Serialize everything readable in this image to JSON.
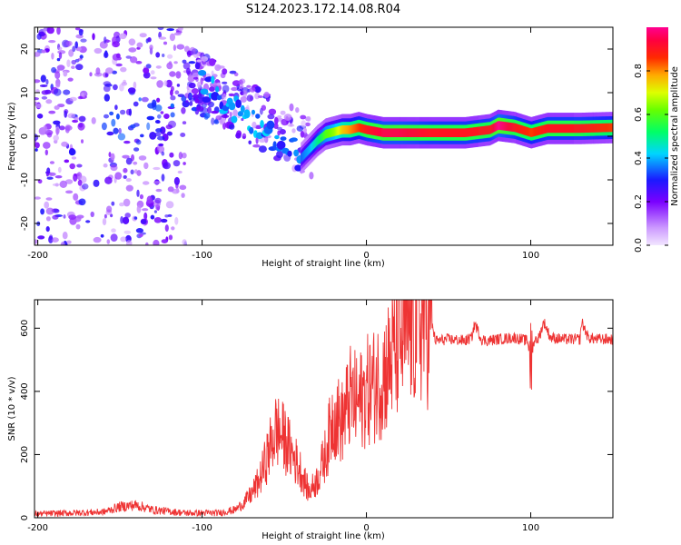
{
  "title": "S124.2023.172.14.08.R04",
  "colors": {
    "snr_line": "#ee3333",
    "axis": "#000000"
  },
  "chart_data": [
    {
      "type": "heatmap",
      "xlabel": "Height of straight line (km)",
      "ylabel": "Frequency (Hz)",
      "xlim": [
        -202,
        150
      ],
      "ylim": [
        -25,
        25
      ],
      "xticks": [
        -200,
        -100,
        0,
        100
      ],
      "yticks": [
        -20,
        -10,
        0,
        10,
        20
      ],
      "colorbar": {
        "label": "Normalized spectral amplitude",
        "range": [
          0,
          1
        ],
        "ticks": [
          "0.0",
          "0.2",
          "0.4",
          "0.6",
          "0.8"
        ],
        "colormap": "hsv-like: lavender, violet, blue, cyan, green, yellow, red, magenta"
      },
      "trace": {
        "x": [
          -40,
          -35,
          -30,
          -25,
          -20,
          -15,
          -10,
          -5,
          0,
          10,
          20,
          40,
          60,
          75,
          80,
          90,
          100,
          110,
          130,
          150
        ],
        "frequency": [
          -5,
          -3,
          -1,
          0.5,
          1,
          1.5,
          1.5,
          2,
          1.5,
          0.8,
          0.8,
          0.8,
          0.8,
          1.5,
          2.5,
          2,
          0.8,
          1.8,
          1.8,
          2
        ],
        "amplitude": [
          0.35,
          0.4,
          0.5,
          0.6,
          0.65,
          0.75,
          0.8,
          0.85,
          0.9,
          0.95,
          0.95,
          0.9,
          0.9,
          0.9,
          1,
          0.9,
          0.85,
          0.9,
          0.9,
          0.85
        ]
      },
      "scatter_region": {
        "x_range": [
          -202,
          -30
        ],
        "frequency_range": [
          -25,
          25
        ],
        "note_amplitude_range": [
          0.05,
          0.3
        ]
      }
    },
    {
      "type": "line",
      "xlabel": "Height of straight line (km)",
      "ylabel": "SNR (10 * v/v)",
      "xlim": [
        -202,
        150
      ],
      "ylim": [
        0,
        690
      ],
      "xticks": [
        -200,
        -100,
        0,
        100
      ],
      "yticks": [
        0,
        200,
        400,
        600
      ],
      "series": [
        {
          "name": "",
          "x": [
            -202,
            -180,
            -160,
            -150,
            -140,
            -130,
            -110,
            -90,
            -80,
            -75,
            -70,
            -65,
            -60,
            -55,
            -50,
            -45,
            -40,
            -35,
            -30,
            -25,
            -20,
            -15,
            -10,
            -5,
            0,
            5,
            10,
            15,
            20,
            25,
            30,
            35,
            40,
            42,
            50,
            60,
            64,
            66,
            70,
            73,
            80,
            90,
            98,
            100,
            102,
            105,
            108,
            112,
            120,
            130,
            131,
            135,
            140,
            150
          ],
          "y": [
            12,
            15,
            18,
            35,
            40,
            25,
            15,
            15,
            25,
            45,
            75,
            120,
            200,
            280,
            250,
            200,
            150,
            80,
            120,
            200,
            330,
            300,
            380,
            360,
            400,
            420,
            450,
            500,
            560,
            590,
            615,
            620,
            610,
            560,
            565,
            560,
            570,
            615,
            565,
            560,
            565,
            570,
            560,
            500,
            560,
            570,
            620,
            570,
            565,
            565,
            620,
            570,
            565,
            565
          ]
        }
      ]
    }
  ]
}
